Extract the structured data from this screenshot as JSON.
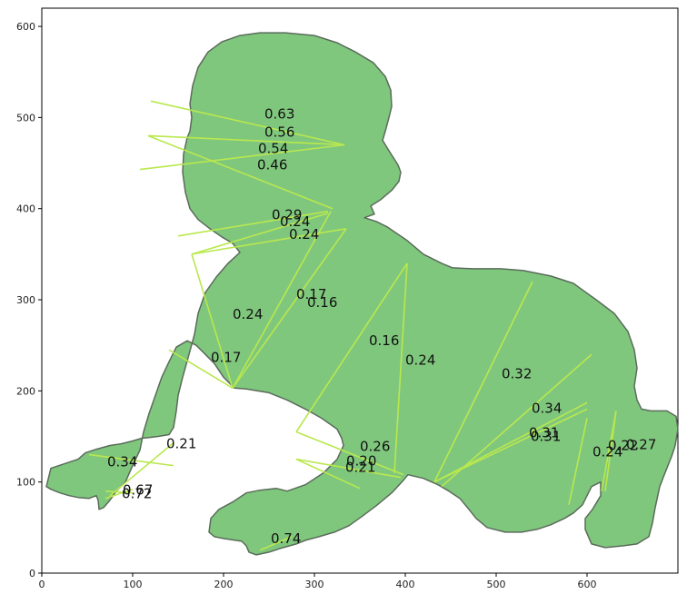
{
  "chart_data": {
    "type": "scatter",
    "title": "",
    "xlabel": "",
    "ylabel": "",
    "xlim": [
      0,
      700
    ],
    "ylim": [
      0,
      620
    ],
    "grid": false,
    "x_ticks": [
      0,
      100,
      200,
      300,
      400,
      500,
      600
    ],
    "y_ticks": [
      0,
      100,
      200,
      300,
      400,
      500,
      600
    ],
    "colors": {
      "fill": "#80c77e",
      "outline": "#5a6b5a",
      "segment": "#b9e84e"
    },
    "outline": [
      [
        5,
        95
      ],
      [
        10,
        115
      ],
      [
        25,
        120
      ],
      [
        40,
        125
      ],
      [
        48,
        132
      ],
      [
        54,
        134
      ],
      [
        60,
        136
      ],
      [
        75,
        140
      ],
      [
        88,
        142
      ],
      [
        100,
        145
      ],
      [
        110,
        148
      ],
      [
        120,
        149
      ],
      [
        128,
        150
      ],
      [
        140,
        152
      ],
      [
        145,
        160
      ],
      [
        148,
        178
      ],
      [
        150,
        195
      ],
      [
        155,
        215
      ],
      [
        162,
        240
      ],
      [
        168,
        262
      ],
      [
        172,
        285
      ],
      [
        180,
        308
      ],
      [
        192,
        325
      ],
      [
        205,
        340
      ],
      [
        218,
        352
      ],
      [
        210,
        362
      ],
      [
        198,
        369
      ],
      [
        185,
        378
      ],
      [
        172,
        388
      ],
      [
        163,
        400
      ],
      [
        158,
        418
      ],
      [
        155,
        440
      ],
      [
        156,
        460
      ],
      [
        160,
        478
      ],
      [
        163,
        485
      ],
      [
        165,
        500
      ],
      [
        163,
        515
      ],
      [
        166,
        535
      ],
      [
        172,
        555
      ],
      [
        183,
        572
      ],
      [
        198,
        583
      ],
      [
        218,
        590
      ],
      [
        240,
        593
      ],
      [
        268,
        593
      ],
      [
        300,
        590
      ],
      [
        325,
        582
      ],
      [
        345,
        572
      ],
      [
        365,
        560
      ],
      [
        378,
        545
      ],
      [
        384,
        530
      ],
      [
        385,
        512
      ],
      [
        382,
        500
      ],
      [
        378,
        485
      ],
      [
        375,
        475
      ],
      [
        383,
        462
      ],
      [
        392,
        448
      ],
      [
        395,
        440
      ],
      [
        393,
        430
      ],
      [
        385,
        420
      ],
      [
        373,
        410
      ],
      [
        362,
        403
      ],
      [
        366,
        394
      ],
      [
        355,
        390
      ],
      [
        368,
        386
      ],
      [
        380,
        380
      ],
      [
        402,
        365
      ],
      [
        420,
        350
      ],
      [
        440,
        340
      ],
      [
        452,
        335
      ],
      [
        475,
        334
      ],
      [
        505,
        334
      ],
      [
        530,
        332
      ],
      [
        560,
        326
      ],
      [
        585,
        318
      ],
      [
        610,
        300
      ],
      [
        630,
        285
      ],
      [
        645,
        265
      ],
      [
        652,
        245
      ],
      [
        655,
        225
      ],
      [
        652,
        205
      ],
      [
        655,
        190
      ],
      [
        660,
        180
      ],
      [
        670,
        178
      ],
      [
        688,
        178
      ],
      [
        698,
        172
      ],
      [
        700,
        158
      ],
      [
        697,
        140
      ],
      [
        693,
        128
      ],
      [
        685,
        108
      ],
      [
        680,
        95
      ],
      [
        675,
        72
      ],
      [
        672,
        55
      ],
      [
        668,
        40
      ],
      [
        655,
        32
      ],
      [
        640,
        30
      ],
      [
        620,
        28
      ],
      [
        605,
        32
      ],
      [
        598,
        48
      ],
      [
        598,
        60
      ],
      [
        606,
        70
      ],
      [
        615,
        85
      ],
      [
        615,
        100
      ],
      [
        605,
        95
      ],
      [
        600,
        85
      ],
      [
        595,
        75
      ],
      [
        585,
        66
      ],
      [
        575,
        60
      ],
      [
        560,
        53
      ],
      [
        545,
        48
      ],
      [
        528,
        45
      ],
      [
        510,
        45
      ],
      [
        490,
        50
      ],
      [
        478,
        60
      ],
      [
        470,
        70
      ],
      [
        460,
        82
      ],
      [
        448,
        90
      ],
      [
        436,
        97
      ],
      [
        420,
        104
      ],
      [
        403,
        108
      ],
      [
        398,
        102
      ],
      [
        385,
        88
      ],
      [
        368,
        74
      ],
      [
        352,
        62
      ],
      [
        338,
        52
      ],
      [
        322,
        45
      ],
      [
        305,
        40
      ],
      [
        290,
        36
      ],
      [
        280,
        32
      ],
      [
        262,
        27
      ],
      [
        250,
        23
      ],
      [
        236,
        20
      ],
      [
        228,
        23
      ],
      [
        225,
        30
      ],
      [
        220,
        35
      ],
      [
        200,
        38
      ],
      [
        190,
        40
      ],
      [
        184,
        45
      ],
      [
        186,
        60
      ],
      [
        195,
        70
      ],
      [
        210,
        78
      ],
      [
        225,
        88
      ],
      [
        240,
        91
      ],
      [
        258,
        93
      ],
      [
        270,
        90
      ],
      [
        290,
        97
      ],
      [
        310,
        110
      ],
      [
        325,
        125
      ],
      [
        332,
        140
      ],
      [
        330,
        148
      ],
      [
        325,
        158
      ],
      [
        308,
        170
      ],
      [
        290,
        180
      ],
      [
        270,
        190
      ],
      [
        250,
        198
      ],
      [
        225,
        202
      ],
      [
        212,
        203
      ],
      [
        200,
        215
      ],
      [
        190,
        230
      ],
      [
        180,
        240
      ],
      [
        170,
        250
      ],
      [
        160,
        255
      ],
      [
        148,
        248
      ],
      [
        140,
        232
      ],
      [
        132,
        215
      ],
      [
        125,
        195
      ],
      [
        118,
        175
      ],
      [
        112,
        155
      ],
      [
        108,
        135
      ],
      [
        100,
        118
      ],
      [
        92,
        100
      ],
      [
        82,
        90
      ],
      [
        75,
        80
      ],
      [
        68,
        72
      ],
      [
        63,
        70
      ],
      [
        62,
        80
      ],
      [
        60,
        85
      ],
      [
        52,
        82
      ],
      [
        40,
        83
      ],
      [
        30,
        85
      ],
      [
        20,
        88
      ],
      [
        10,
        92
      ]
    ],
    "segments": [
      {
        "x": [
          120,
          333
        ],
        "y": [
          518,
          470
        ],
        "value": 0.63,
        "label_xy": [
          245,
          499
        ]
      },
      {
        "x": [
          117,
          333
        ],
        "y": [
          480,
          470
        ],
        "value": 0.56,
        "label_xy": [
          245,
          479
        ]
      },
      {
        "x": [
          108,
          333
        ],
        "y": [
          443,
          470
        ],
        "value": 0.54,
        "label_xy": [
          238,
          461
        ]
      },
      {
        "x": [
          117,
          320
        ],
        "y": [
          480,
          400
        ],
        "value": 0.46,
        "label_xy": [
          237,
          443
        ]
      },
      {
        "x": [
          150,
          315
        ],
        "y": [
          370,
          397
        ],
        "value": 0.29,
        "label_xy": [
          253,
          388
        ]
      },
      {
        "x": [
          165,
          315
        ],
        "y": [
          350,
          395
        ],
        "value": 0.24,
        "label_xy": [
          262,
          381
        ]
      },
      {
        "x": [
          165,
          335
        ],
        "y": [
          350,
          378
        ],
        "value": 0.24,
        "label_xy": [
          272,
          367
        ]
      },
      {
        "x": [
          210,
          318
        ],
        "y": [
          203,
          397
        ],
        "value": 0.17,
        "label_xy": [
          280,
          301
        ]
      },
      {
        "x": [
          210,
          335
        ],
        "y": [
          203,
          378
        ],
        "value": 0.16,
        "label_xy": [
          292,
          292
        ]
      },
      {
        "x": [
          210,
          165
        ],
        "y": [
          203,
          350
        ],
        "value": 0.24,
        "label_xy": [
          210,
          279
        ]
      },
      {
        "x": [
          210,
          140
        ],
        "y": [
          203,
          245
        ],
        "value": 0.17,
        "label_xy": [
          186,
          232
        ]
      },
      {
        "x": [
          280,
          402
        ],
        "y": [
          155,
          340
        ],
        "value": 0.16,
        "label_xy": [
          360,
          250
        ]
      },
      {
        "x": [
          388,
          402
        ],
        "y": [
          110,
          340
        ],
        "value": 0.24,
        "label_xy": [
          400,
          229
        ]
      },
      {
        "x": [
          432,
          540
        ],
        "y": [
          100,
          320
        ],
        "value": 0.32,
        "label_xy": [
          506,
          214
        ]
      },
      {
        "x": [
          440,
          605
        ],
        "y": [
          95,
          240
        ],
        "value": 0.34,
        "label_xy": [
          539,
          176
        ]
      },
      {
        "x": [
          432,
          600
        ],
        "y": [
          100,
          187
        ],
        "value": 0.31,
        "label_xy": [
          536,
          149
        ]
      },
      {
        "x": [
          432,
          600
        ],
        "y": [
          100,
          180
        ],
        "value": 0.31,
        "label_xy": [
          538,
          145
        ]
      },
      {
        "x": [
          280,
          398
        ],
        "y": [
          155,
          108
        ],
        "value": 0.26,
        "label_xy": [
          350,
          134
        ]
      },
      {
        "x": [
          280,
          395
        ],
        "y": [
          125,
          105
        ],
        "value": 0.2,
        "label_xy": [
          335,
          118
        ]
      },
      {
        "x": [
          280,
          350
        ],
        "y": [
          125,
          93
        ],
        "value": 0.21,
        "label_xy": [
          334,
          111
        ]
      },
      {
        "x": [
          580,
          600
        ],
        "y": [
          75,
          170
        ],
        "value": 0.24,
        "label_xy": [
          606,
          128
        ]
      },
      {
        "x": [
          620,
          632
        ],
        "y": [
          90,
          178
        ],
        "value": 0.22,
        "label_xy": [
          623,
          135
        ]
      },
      {
        "x": [
          616,
          632
        ],
        "y": [
          90,
          178
        ],
        "value": 0.27,
        "label_xy": [
          643,
          136
        ]
      },
      {
        "x": [
          75,
          145
        ],
        "y": [
          85,
          143
        ],
        "value": 0.21,
        "label_xy": [
          137,
          137
        ]
      },
      {
        "x": [
          52,
          145
        ],
        "y": [
          130,
          118
        ],
        "value": 0.34,
        "label_xy": [
          72,
          117
        ]
      },
      {
        "x": [
          70,
          100
        ],
        "y": [
          90,
          88
        ],
        "value": 0.67,
        "label_xy": [
          89,
          86
        ]
      },
      {
        "x": [
          70,
          100
        ],
        "y": [
          82,
          92
        ],
        "value": 0.72,
        "label_xy": [
          88,
          82
        ]
      },
      {
        "x": [
          240,
          275
        ],
        "y": [
          25,
          40
        ],
        "value": 0.74,
        "label_xy": [
          252,
          33
        ]
      }
    ]
  }
}
